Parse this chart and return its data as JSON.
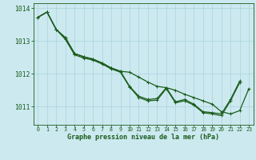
{
  "title": "Graphe pression niveau de la mer (hPa)",
  "background_color": "#cce9f0",
  "grid_color": "#aad4dc",
  "line_color": "#1a5c1a",
  "y_ticks": [
    1011,
    1012,
    1013,
    1014
  ],
  "x_ticks": [
    0,
    1,
    2,
    3,
    4,
    5,
    6,
    7,
    8,
    9,
    10,
    11,
    12,
    13,
    14,
    15,
    16,
    17,
    18,
    19,
    20,
    21,
    22,
    23
  ],
  "ylim": [
    1010.45,
    1014.15
  ],
  "xlim": [
    -0.5,
    23.5
  ],
  "series1": [
    1013.72,
    1013.88,
    1013.35,
    1013.1,
    1012.62,
    1012.52,
    1012.45,
    1012.33,
    1012.18,
    1012.08,
    1012.05,
    1011.9,
    1011.75,
    1011.62,
    1011.58,
    1011.5,
    1011.38,
    1011.28,
    1011.18,
    1011.08,
    1010.85,
    1010.78,
    1010.88,
    1011.55
  ],
  "series2": [
    1013.72,
    1013.88,
    1013.35,
    1013.1,
    1012.62,
    1012.52,
    1012.45,
    1012.33,
    1012.18,
    1012.08,
    1011.62,
    1011.32,
    1011.22,
    1011.25,
    1011.58,
    1011.15,
    1011.22,
    1011.08,
    1010.85,
    1010.82,
    1010.78,
    1011.22,
    1011.78
  ],
  "series3": [
    1013.72,
    1013.88,
    1013.35,
    1013.05,
    1012.58,
    1012.48,
    1012.42,
    1012.3,
    1012.15,
    1012.05,
    1011.6,
    1011.28,
    1011.18,
    1011.2,
    1011.55,
    1011.12,
    1011.18,
    1011.05,
    1010.82,
    1010.78,
    1010.73,
    1011.18,
    1011.73
  ],
  "linewidth": 0.9,
  "markersize": 3.0,
  "markeredgewidth": 0.7
}
